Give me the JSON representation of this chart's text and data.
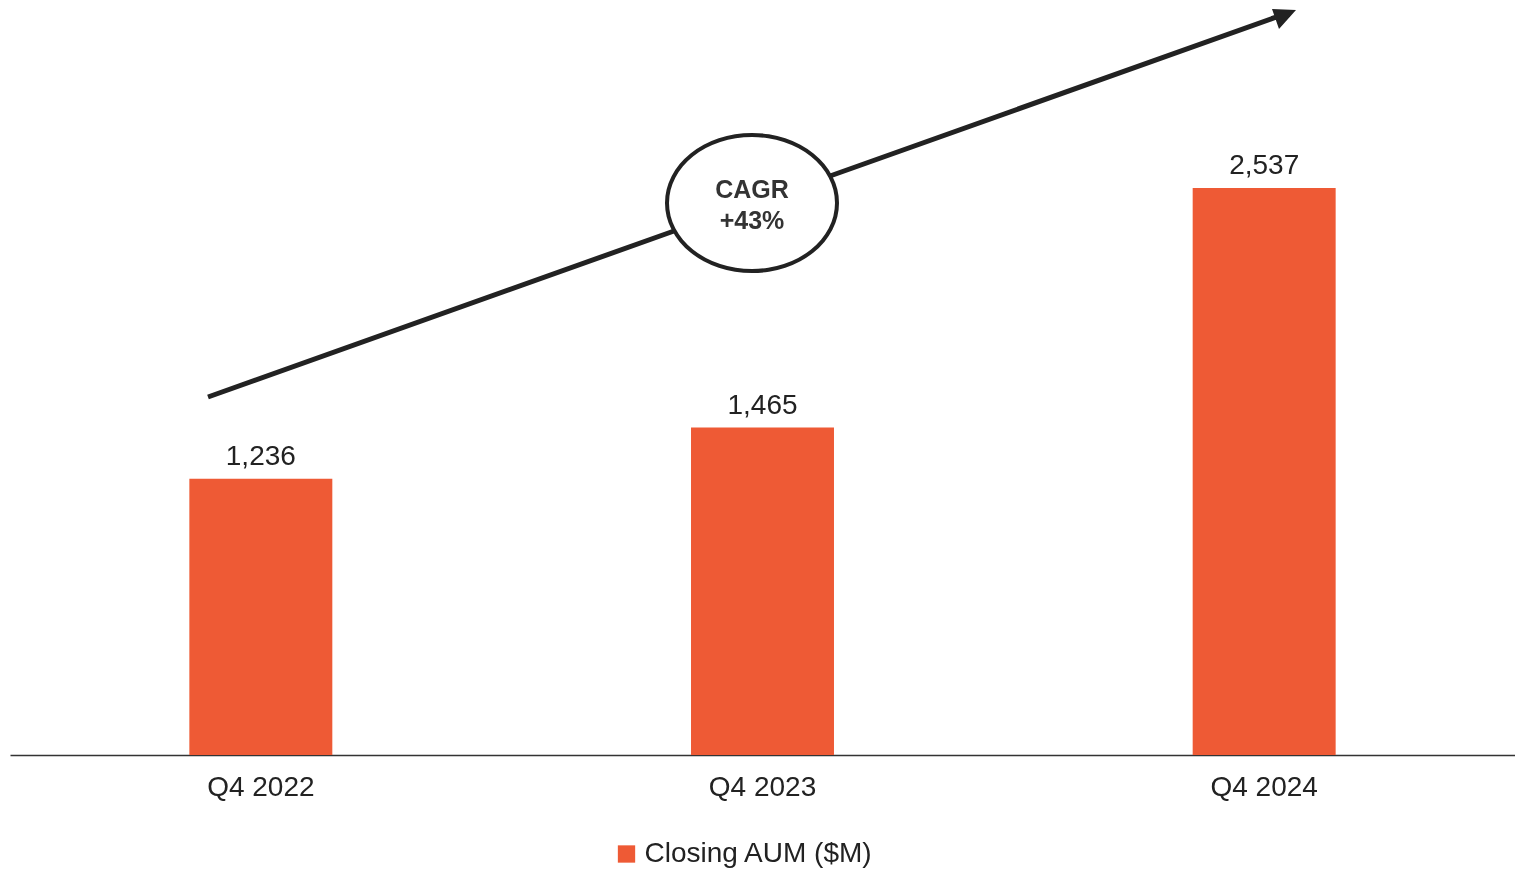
{
  "chart_data": {
    "type": "bar",
    "categories": [
      "Q4 2022",
      "Q4 2023",
      "Q4 2024"
    ],
    "series": [
      {
        "name": "Closing AUM ($M)",
        "color": "#ee5a35",
        "values": [
          1236,
          1465,
          2537
        ],
        "value_labels": [
          "1,236",
          "1,465",
          "2,537"
        ]
      }
    ],
    "legend": "bottom",
    "grid": false,
    "annotations": [
      "CAGR +43%"
    ]
  }
}
